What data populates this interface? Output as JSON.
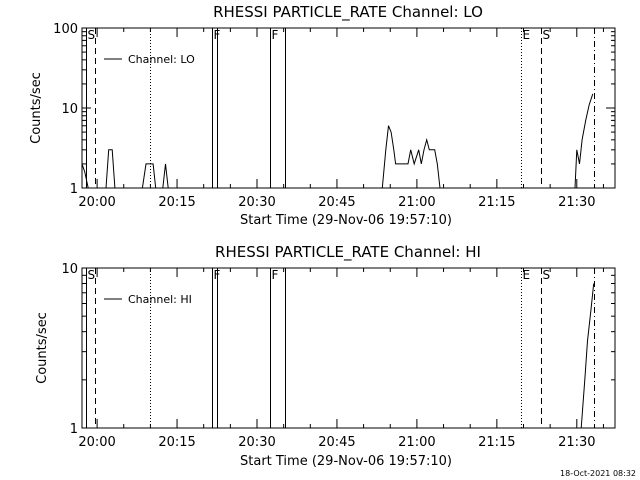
{
  "timestamp": "18-Oct-2021 08:32",
  "chart_data": [
    {
      "type": "line",
      "title": "RHESSI PARTICLE_RATE Channel: LO",
      "xlabel": "Start Time (29-Nov-06 19:57:10)",
      "ylabel": "Counts/sec",
      "yscale": "log",
      "ylim": [
        1,
        100
      ],
      "y_ticks": [
        {
          "value": 1,
          "label": "1"
        },
        {
          "value": 10,
          "label": "10"
        },
        {
          "value": 100,
          "label": "100"
        }
      ],
      "xlim": [
        "19:57:10",
        "21:37:10"
      ],
      "x_ticks": [
        {
          "value": "20:00",
          "label": "20:00"
        },
        {
          "value": "20:15",
          "label": "20:15"
        },
        {
          "value": "20:30",
          "label": "20:30"
        },
        {
          "value": "20:45",
          "label": "20:45"
        },
        {
          "value": "21:00",
          "label": "21:00"
        },
        {
          "value": "21:15",
          "label": "21:15"
        },
        {
          "value": "21:30",
          "label": "21:30"
        }
      ],
      "legend": {
        "label": "Channel: LO",
        "placement": "top-left"
      },
      "markers": [
        {
          "time": "19:58:00",
          "style": "solid",
          "label": "S"
        },
        {
          "time": "19:59:40",
          "style": "dashed",
          "label": ""
        },
        {
          "time": "20:10:00",
          "style": "dotted",
          "label": ""
        },
        {
          "time": "20:21:30",
          "style": "solid",
          "label": "F"
        },
        {
          "time": "20:22:30",
          "style": "solid",
          "label": ""
        },
        {
          "time": "20:32:30",
          "style": "solid",
          "label": "F"
        },
        {
          "time": "20:35:20",
          "style": "solid",
          "label": ""
        },
        {
          "time": "21:19:30",
          "style": "dotted",
          "label": "E"
        },
        {
          "time": "21:23:20",
          "style": "dashed",
          "label": "S"
        },
        {
          "time": "21:33:10",
          "style": "dashdot",
          "label": ""
        }
      ],
      "series": [
        {
          "name": "Channel: LO",
          "segments": [
            [
              [
                "19:57:10",
                2.0
              ],
              [
                "19:57:40",
                1.6
              ],
              [
                "19:58:20",
                1.0
              ]
            ],
            [
              [
                "20:01:40",
                1.0
              ],
              [
                "20:02:10",
                3.0
              ],
              [
                "20:02:50",
                3.0
              ],
              [
                "20:03:20",
                1.0
              ]
            ],
            [
              [
                "20:08:30",
                1.0
              ],
              [
                "20:09:10",
                2.0
              ],
              [
                "20:10:30",
                2.0
              ],
              [
                "20:11:00",
                1.0
              ]
            ],
            [
              [
                "20:12:20",
                1.0
              ],
              [
                "20:12:50",
                2.0
              ],
              [
                "20:13:20",
                1.0
              ]
            ],
            [
              [
                "20:53:30",
                1.0
              ],
              [
                "20:54:10",
                3.0
              ],
              [
                "20:54:40",
                6.0
              ],
              [
                "20:55:10",
                5.0
              ],
              [
                "20:55:40",
                3.0
              ],
              [
                "20:56:00",
                2.0
              ],
              [
                "20:58:20",
                2.0
              ],
              [
                "20:58:50",
                3.0
              ],
              [
                "20:59:30",
                2.0
              ],
              [
                "21:00:20",
                3.0
              ],
              [
                "21:00:50",
                2.0
              ],
              [
                "21:01:20",
                3.0
              ],
              [
                "21:01:50",
                4.0
              ],
              [
                "21:02:20",
                3.0
              ],
              [
                "21:03:20",
                3.0
              ],
              [
                "21:03:50",
                2.0
              ],
              [
                "21:04:20",
                1.0
              ]
            ],
            [
              [
                "21:29:40",
                1.0
              ],
              [
                "21:30:00",
                3.0
              ],
              [
                "21:30:30",
                2.0
              ],
              [
                "21:31:00",
                4.0
              ],
              [
                "21:31:40",
                7.0
              ],
              [
                "21:32:20",
                11.0
              ],
              [
                "21:33:00",
                15.0
              ]
            ]
          ]
        }
      ]
    },
    {
      "type": "line",
      "title": "RHESSI PARTICLE_RATE Channel: HI",
      "xlabel": "Start Time (29-Nov-06 19:57:10)",
      "ylabel": "Counts/sec",
      "yscale": "log",
      "ylim": [
        1,
        10
      ],
      "y_ticks": [
        {
          "value": 1,
          "label": "1"
        },
        {
          "value": 10,
          "label": "10"
        }
      ],
      "xlim": [
        "19:57:10",
        "21:37:10"
      ],
      "x_ticks": [
        {
          "value": "20:00",
          "label": "20:00"
        },
        {
          "value": "20:15",
          "label": "20:15"
        },
        {
          "value": "20:30",
          "label": "20:30"
        },
        {
          "value": "20:45",
          "label": "20:45"
        },
        {
          "value": "21:00",
          "label": "21:00"
        },
        {
          "value": "21:15",
          "label": "21:15"
        },
        {
          "value": "21:30",
          "label": "21:30"
        }
      ],
      "legend": {
        "label": "Channel: HI",
        "placement": "top-left"
      },
      "markers": [
        {
          "time": "19:58:00",
          "style": "solid",
          "label": "S"
        },
        {
          "time": "19:59:40",
          "style": "dashed",
          "label": ""
        },
        {
          "time": "20:10:00",
          "style": "dotted",
          "label": ""
        },
        {
          "time": "20:21:30",
          "style": "solid",
          "label": "F"
        },
        {
          "time": "20:22:30",
          "style": "solid",
          "label": ""
        },
        {
          "time": "20:32:30",
          "style": "solid",
          "label": "F"
        },
        {
          "time": "20:35:20",
          "style": "solid",
          "label": ""
        },
        {
          "time": "21:19:30",
          "style": "dotted",
          "label": "E"
        },
        {
          "time": "21:23:20",
          "style": "dashed",
          "label": "S"
        },
        {
          "time": "21:33:10",
          "style": "dashdot",
          "label": ""
        }
      ],
      "series": [
        {
          "name": "Channel: HI",
          "segments": [
            [
              [
                "21:30:50",
                1.0
              ],
              [
                "21:31:30",
                2.0
              ],
              [
                "21:32:00",
                3.5
              ],
              [
                "21:32:40",
                5.5
              ],
              [
                "21:33:10",
                8.0
              ]
            ]
          ]
        }
      ]
    }
  ]
}
